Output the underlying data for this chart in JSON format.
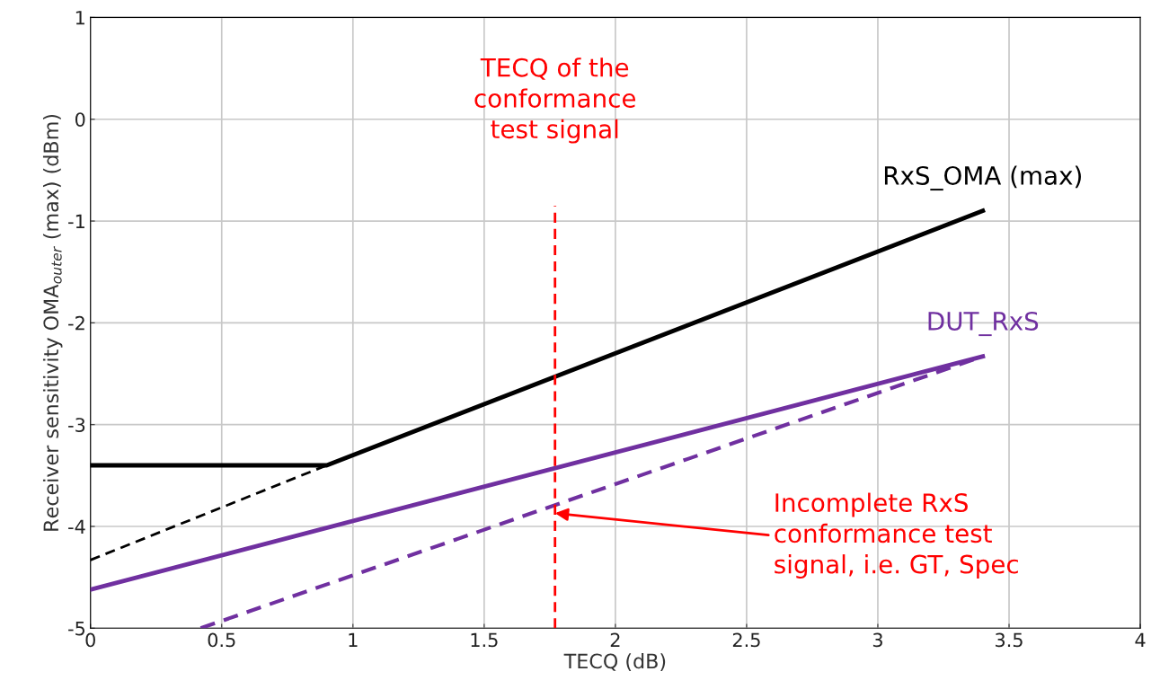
{
  "chart_data": {
    "type": "line",
    "xlabel": "TECQ (dB)",
    "ylabel": "Receiver sensitivity OMA$_{outer}$ (max) (dBm)",
    "xlim": [
      0,
      4
    ],
    "ylim": [
      -5,
      1
    ],
    "xticks": [
      0,
      0.5,
      1,
      1.5,
      2,
      2.5,
      3,
      3.5,
      4
    ],
    "yticks": [
      -5,
      -4,
      -3,
      -2,
      -1,
      0,
      1
    ],
    "grid": true,
    "marker": "none",
    "series": [
      {
        "name": "RxS_OMA (max)",
        "color": "#000000",
        "x": [
          0,
          0.9,
          3.4
        ],
        "values": [
          -3.4,
          -3.4,
          -0.9
        ],
        "line_style": "solid"
      },
      {
        "color": "#000000",
        "x": [
          0,
          0.9
        ],
        "values": [
          -4.33,
          -3.4
        ],
        "line_style": "dashed"
      },
      {
        "name": "DUT_RxS",
        "color": "#7030a0",
        "x": [
          0,
          3.4
        ],
        "values": [
          -4.62,
          -2.33
        ],
        "line_style": "solid"
      },
      {
        "color": "#7030a0",
        "x": [
          0.42,
          3.4
        ],
        "values": [
          -5,
          -2.33
        ],
        "line_style": "dashed"
      },
      {
        "color": "#ff0000",
        "x": [
          1.77,
          1.77
        ],
        "values": [
          -5,
          -0.85
        ],
        "line_style": "dashed"
      }
    ],
    "annotations": [
      {
        "text": "TECQ of the\nconformance\ntest signal",
        "x": 1.77,
        "y": -0.85
      },
      {
        "text": "Incomplete RxS\nconformance test\nsignal, i.e. GT, Spec",
        "x": 1.77,
        "y": -3.87
      }
    ]
  }
}
